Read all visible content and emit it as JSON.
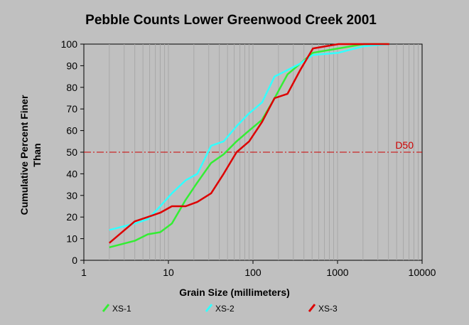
{
  "chart_data": {
    "type": "line",
    "title": "Pebble Counts Lower Greenwood Creek 2001",
    "xlabel": "Grain Size (millimeters)",
    "ylabel": [
      "Cumulative Percent Finer",
      "Than"
    ],
    "x_scale": "log",
    "xlim": [
      1,
      10000
    ],
    "ylim": [
      0,
      100
    ],
    "x_ticks": [
      1,
      10,
      100,
      1000,
      10000
    ],
    "x_tick_labels": [
      "1",
      "10",
      "100",
      "1000",
      "10000"
    ],
    "y_ticks": [
      0,
      10,
      20,
      30,
      40,
      50,
      60,
      70,
      80,
      90,
      100
    ],
    "y_tick_labels": [
      "0",
      "10",
      "20",
      "30",
      "40",
      "50",
      "60",
      "70",
      "80",
      "90",
      "100"
    ],
    "grid": "vertical log gridlines",
    "legend_position": "bottom",
    "reference_line": {
      "y": 50,
      "label": "D50",
      "color": "#cc0000"
    },
    "series": [
      {
        "name": "XS-1",
        "color": "#33ee33",
        "points": [
          [
            2,
            6
          ],
          [
            4,
            9
          ],
          [
            5.7,
            12
          ],
          [
            8,
            13
          ],
          [
            11,
            17
          ],
          [
            16,
            28
          ],
          [
            22,
            36
          ],
          [
            32,
            45
          ],
          [
            45,
            49
          ],
          [
            64,
            55
          ],
          [
            90,
            60
          ],
          [
            128,
            65
          ],
          [
            180,
            75
          ],
          [
            256,
            86
          ],
          [
            362,
            91
          ],
          [
            512,
            96
          ],
          [
            1024,
            98
          ],
          [
            2048,
            100
          ],
          [
            4096,
            100
          ]
        ]
      },
      {
        "name": "XS-2",
        "color": "#33ffff",
        "points": [
          [
            2,
            14
          ],
          [
            4,
            17
          ],
          [
            5.7,
            19
          ],
          [
            8,
            25
          ],
          [
            11,
            31
          ],
          [
            16,
            37
          ],
          [
            22,
            40
          ],
          [
            32,
            53
          ],
          [
            45,
            55
          ],
          [
            64,
            62
          ],
          [
            90,
            68
          ],
          [
            128,
            73
          ],
          [
            180,
            85
          ],
          [
            256,
            88
          ],
          [
            362,
            91
          ],
          [
            512,
            95
          ],
          [
            1024,
            96
          ],
          [
            2048,
            99
          ],
          [
            4096,
            100
          ]
        ]
      },
      {
        "name": "XS-3",
        "color": "#dd0000",
        "points": [
          [
            2,
            8
          ],
          [
            4,
            18
          ],
          [
            5.7,
            20
          ],
          [
            8,
            22
          ],
          [
            11,
            25
          ],
          [
            16,
            25
          ],
          [
            22,
            27
          ],
          [
            32,
            31
          ],
          [
            45,
            40
          ],
          [
            64,
            50
          ],
          [
            90,
            55
          ],
          [
            128,
            64
          ],
          [
            180,
            75
          ],
          [
            256,
            77
          ],
          [
            362,
            88
          ],
          [
            512,
            98
          ],
          [
            1024,
            100
          ],
          [
            2048,
            100
          ],
          [
            4096,
            100
          ]
        ]
      }
    ]
  }
}
